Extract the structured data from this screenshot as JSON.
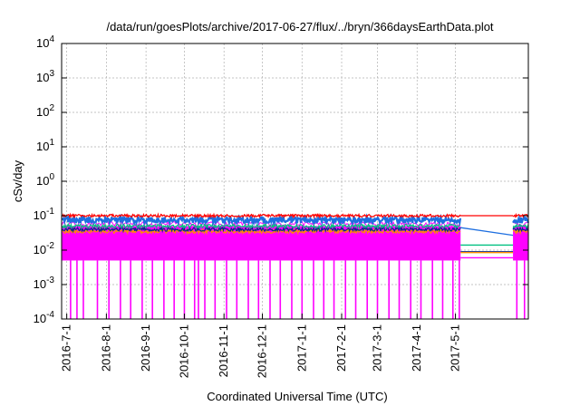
{
  "chart_data": {
    "type": "line",
    "title": "/data/run/goesPlots/archive/2017-06-27/flux/../bryn/366daysEarthData.plot",
    "xlabel": "Coordinated Universal Time (UTC)",
    "ylabel": "cSv/day",
    "yscale": "log",
    "ylim": [
      0.0001,
      10000
    ],
    "xlim": [
      "2016-06-27",
      "2017-06-27"
    ],
    "grid": true,
    "legend": "none",
    "y_ticks": [
      {
        "base": "10",
        "exp": "-4",
        "value": 0.0001
      },
      {
        "base": "10",
        "exp": "-3",
        "value": 0.001
      },
      {
        "base": "10",
        "exp": "-2",
        "value": 0.01
      },
      {
        "base": "10",
        "exp": "-1",
        "value": 0.1
      },
      {
        "base": "10",
        "exp": "0",
        "value": 1
      },
      {
        "base": "10",
        "exp": "1",
        "value": 10
      },
      {
        "base": "10",
        "exp": "2",
        "value": 100
      },
      {
        "base": "10",
        "exp": "3",
        "value": 1000
      },
      {
        "base": "10",
        "exp": "4",
        "value": 10000
      }
    ],
    "x_ticks": [
      {
        "label": "2016-7-1",
        "date": "2016-07-01"
      },
      {
        "label": "2016-8-1",
        "date": "2016-08-01"
      },
      {
        "label": "2016-9-1",
        "date": "2016-09-01"
      },
      {
        "label": "2016-10-1",
        "date": "2016-10-01"
      },
      {
        "label": "2016-11-1",
        "date": "2016-11-01"
      },
      {
        "label": "2016-12-1",
        "date": "2016-12-01"
      },
      {
        "label": "2017-1-1",
        "date": "2017-01-01"
      },
      {
        "label": "2017-2-1",
        "date": "2017-02-01"
      },
      {
        "label": "2017-3-1",
        "date": "2017-03-01"
      },
      {
        "label": "2017-4-1",
        "date": "2017-04-01"
      },
      {
        "label": "2017-5-1",
        "date": "2017-05-01"
      }
    ],
    "data_gap": {
      "start": "2017-05-05",
      "end": "2017-06-15"
    },
    "series": [
      {
        "color": "#ff0000",
        "segments": [
          {
            "x": [
              "2016-06-27",
              "2017-05-05"
            ],
            "y": [
              0.1,
              0.1
            ]
          },
          {
            "x": [
              "2017-05-05",
              "2017-06-15"
            ],
            "y": [
              0.1,
              0.1
            ]
          },
          {
            "x": [
              "2017-06-15",
              "2017-06-27"
            ],
            "y": [
              0.1,
              0.1
            ]
          }
        ]
      },
      {
        "color": "#1e6fe0",
        "segments": [
          {
            "x": [
              "2016-06-27",
              "2017-05-05"
            ],
            "y": [
              0.075,
              0.075
            ]
          },
          {
            "x": [
              "2017-05-05",
              "2017-06-15"
            ],
            "y": [
              0.045,
              0.027
            ]
          },
          {
            "x": [
              "2017-06-15",
              "2017-06-27"
            ],
            "y": [
              0.075,
              0.075
            ]
          }
        ]
      },
      {
        "color": "#00c080",
        "segments": [
          {
            "x": [
              "2016-06-27",
              "2017-05-05"
            ],
            "y": [
              0.05,
              0.05
            ]
          },
          {
            "x": [
              "2017-05-05",
              "2017-06-15"
            ],
            "y": [
              0.014,
              0.014
            ]
          },
          {
            "x": [
              "2017-06-15",
              "2017-06-27"
            ],
            "y": [
              0.05,
              0.05
            ]
          }
        ]
      },
      {
        "color": "#0a2a8a",
        "segments": [
          {
            "x": [
              "2016-06-27",
              "2017-05-05"
            ],
            "y": [
              0.04,
              0.04
            ]
          },
          {
            "x": [
              "2017-05-05",
              "2017-06-15"
            ],
            "y": [
              0.009,
              0.009
            ]
          },
          {
            "x": [
              "2017-06-15",
              "2017-06-27"
            ],
            "y": [
              0.04,
              0.04
            ]
          }
        ]
      },
      {
        "color": "#ff8c00",
        "segments": [
          {
            "x": [
              "2016-06-27",
              "2017-05-05"
            ],
            "y": [
              0.035,
              0.035
            ]
          },
          {
            "x": [
              "2017-05-05",
              "2017-06-15"
            ],
            "y": [
              0.0085,
              0.0085
            ]
          },
          {
            "x": [
              "2017-06-15",
              "2017-06-27"
            ],
            "y": [
              0.035,
              0.035
            ]
          }
        ]
      },
      {
        "color": "#ff00ff",
        "band": [
          0.005,
          0.05
        ],
        "dropouts": [
          "2016-07-04",
          "2016-07-09",
          "2016-07-14",
          "2016-07-25",
          "2016-08-03",
          "2016-08-12",
          "2016-08-20",
          "2016-08-29",
          "2016-09-06",
          "2016-09-15",
          "2016-09-23",
          "2016-10-01",
          "2016-10-09",
          "2016-10-12",
          "2016-10-17",
          "2016-10-25",
          "2016-11-03",
          "2016-11-11",
          "2016-11-20",
          "2016-11-28",
          "2016-12-07",
          "2016-12-15",
          "2016-12-24",
          "2017-01-01",
          "2017-01-10",
          "2017-01-18",
          "2017-01-26",
          "2017-02-04",
          "2017-02-12",
          "2017-02-21",
          "2017-03-01",
          "2017-03-10",
          "2017-03-18",
          "2017-03-27",
          "2017-04-04",
          "2017-04-13",
          "2017-04-21",
          "2017-04-29",
          "2017-05-04",
          "2017-06-18",
          "2017-06-24"
        ],
        "dropout_y": 0.0001,
        "segments": [
          {
            "x": [
              "2016-06-27",
              "2017-05-05"
            ],
            "y": [
              0.01,
              0.01
            ]
          },
          {
            "x": [
              "2017-05-05",
              "2017-06-15"
            ],
            "y": [
              0.006,
              0.006
            ]
          },
          {
            "x": [
              "2017-06-15",
              "2017-06-27"
            ],
            "y": [
              0.01,
              0.01
            ]
          }
        ]
      }
    ]
  }
}
